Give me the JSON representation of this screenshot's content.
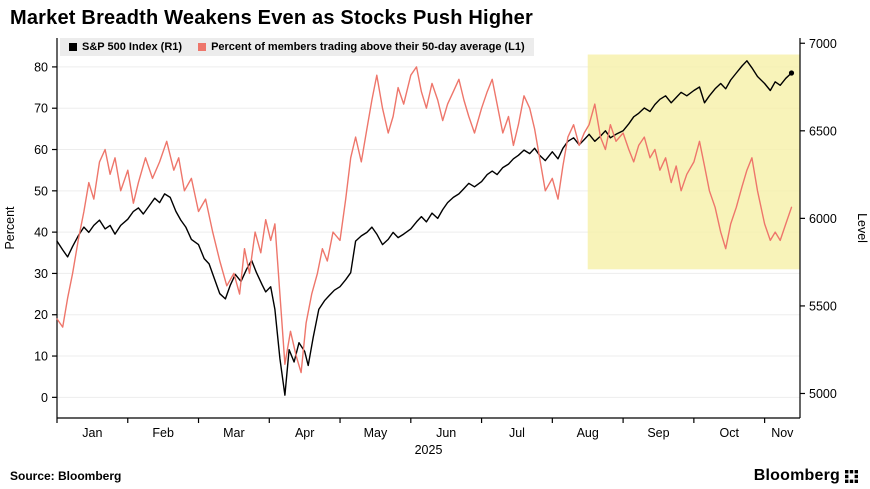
{
  "title": "Market Breadth Weakens Even as Stocks Push Higher",
  "source": "Source: Bloomberg",
  "brand": "Bloomberg",
  "legend": [
    {
      "label": "S&P 500 Index (R1)",
      "color": "#000000"
    },
    {
      "label": "Percent of members trading above their 50-day average (L1)",
      "color": "#ee766b"
    }
  ],
  "chart_data": {
    "type": "line",
    "title": "Market Breadth Weakens Even as Stocks Push Higher",
    "x_unit": "months, 0 = Jan 1 2025",
    "x_range": [
      0,
      10.5
    ],
    "x_month_labels": [
      "Jan",
      "Feb",
      "Mar",
      "Apr",
      "May",
      "Jun",
      "Jul",
      "Aug",
      "Sep",
      "Oct",
      "Nov"
    ],
    "year_label": "2025",
    "grid": "horizontal-light",
    "legend_position": "top-inside",
    "left_axis": {
      "title": "Percent",
      "min": -5,
      "max": 87,
      "ticks": [
        0,
        10,
        20,
        30,
        40,
        50,
        60,
        70,
        80
      ]
    },
    "right_axis": {
      "title": "Level",
      "min": 4860,
      "max": 7030,
      "ticks": [
        5000,
        5500,
        6000,
        6500,
        7000
      ]
    },
    "highlight": {
      "x0": 7.5,
      "x1": 10.5,
      "pct_y0": 31,
      "pct_y1": 83,
      "color": "#f6f0a8",
      "opacity": 0.8
    },
    "series": [
      {
        "name": "S&P 500 Index (R1)",
        "axis": "right",
        "color": "#000000",
        "end_marker": true,
        "points": [
          [
            0.0,
            5870
          ],
          [
            0.08,
            5820
          ],
          [
            0.15,
            5780
          ],
          [
            0.22,
            5840
          ],
          [
            0.3,
            5900
          ],
          [
            0.38,
            5950
          ],
          [
            0.45,
            5920
          ],
          [
            0.52,
            5960
          ],
          [
            0.6,
            5990
          ],
          [
            0.68,
            5940
          ],
          [
            0.75,
            5960
          ],
          [
            0.82,
            5910
          ],
          [
            0.9,
            5960
          ],
          [
            1.0,
            5995
          ],
          [
            1.08,
            6040
          ],
          [
            1.15,
            6060
          ],
          [
            1.22,
            6025
          ],
          [
            1.3,
            6070
          ],
          [
            1.38,
            6115
          ],
          [
            1.45,
            6090
          ],
          [
            1.52,
            6140
          ],
          [
            1.6,
            6120
          ],
          [
            1.68,
            6040
          ],
          [
            1.75,
            5990
          ],
          [
            1.82,
            5950
          ],
          [
            1.9,
            5880
          ],
          [
            2.0,
            5850
          ],
          [
            2.08,
            5770
          ],
          [
            2.15,
            5740
          ],
          [
            2.22,
            5660
          ],
          [
            2.3,
            5570
          ],
          [
            2.38,
            5540
          ],
          [
            2.45,
            5620
          ],
          [
            2.52,
            5680
          ],
          [
            2.6,
            5640
          ],
          [
            2.68,
            5710
          ],
          [
            2.75,
            5760
          ],
          [
            2.82,
            5690
          ],
          [
            2.9,
            5620
          ],
          [
            2.95,
            5580
          ],
          [
            3.02,
            5610
          ],
          [
            3.08,
            5480
          ],
          [
            3.15,
            5200
          ],
          [
            3.22,
            4990
          ],
          [
            3.28,
            5250
          ],
          [
            3.35,
            5180
          ],
          [
            3.42,
            5290
          ],
          [
            3.5,
            5240
          ],
          [
            3.55,
            5160
          ],
          [
            3.62,
            5320
          ],
          [
            3.7,
            5480
          ],
          [
            3.78,
            5530
          ],
          [
            3.85,
            5560
          ],
          [
            3.92,
            5590
          ],
          [
            4.0,
            5610
          ],
          [
            4.08,
            5650
          ],
          [
            4.15,
            5690
          ],
          [
            4.22,
            5870
          ],
          [
            4.3,
            5900
          ],
          [
            4.38,
            5920
          ],
          [
            4.45,
            5950
          ],
          [
            4.52,
            5910
          ],
          [
            4.6,
            5850
          ],
          [
            4.68,
            5880
          ],
          [
            4.75,
            5920
          ],
          [
            4.82,
            5890
          ],
          [
            4.9,
            5910
          ],
          [
            5.0,
            5940
          ],
          [
            5.08,
            5980
          ],
          [
            5.15,
            6010
          ],
          [
            5.22,
            5980
          ],
          [
            5.3,
            6030
          ],
          [
            5.38,
            6000
          ],
          [
            5.45,
            6050
          ],
          [
            5.52,
            6090
          ],
          [
            5.6,
            6120
          ],
          [
            5.68,
            6140
          ],
          [
            5.75,
            6170
          ],
          [
            5.82,
            6200
          ],
          [
            5.9,
            6180
          ],
          [
            6.0,
            6210
          ],
          [
            6.08,
            6250
          ],
          [
            6.15,
            6270
          ],
          [
            6.22,
            6250
          ],
          [
            6.3,
            6290
          ],
          [
            6.38,
            6310
          ],
          [
            6.45,
            6340
          ],
          [
            6.52,
            6360
          ],
          [
            6.6,
            6390
          ],
          [
            6.68,
            6370
          ],
          [
            6.75,
            6400
          ],
          [
            6.82,
            6360
          ],
          [
            6.9,
            6330
          ],
          [
            7.0,
            6380
          ],
          [
            7.08,
            6340
          ],
          [
            7.15,
            6400
          ],
          [
            7.22,
            6440
          ],
          [
            7.3,
            6460
          ],
          [
            7.38,
            6420
          ],
          [
            7.45,
            6450
          ],
          [
            7.52,
            6480
          ],
          [
            7.6,
            6440
          ],
          [
            7.68,
            6470
          ],
          [
            7.75,
            6500
          ],
          [
            7.82,
            6460
          ],
          [
            7.9,
            6480
          ],
          [
            8.0,
            6500
          ],
          [
            8.08,
            6540
          ],
          [
            8.15,
            6580
          ],
          [
            8.22,
            6600
          ],
          [
            8.3,
            6630
          ],
          [
            8.38,
            6610
          ],
          [
            8.45,
            6650
          ],
          [
            8.52,
            6680
          ],
          [
            8.6,
            6700
          ],
          [
            8.68,
            6660
          ],
          [
            8.75,
            6690
          ],
          [
            8.82,
            6720
          ],
          [
            8.9,
            6700
          ],
          [
            9.0,
            6730
          ],
          [
            9.08,
            6750
          ],
          [
            9.15,
            6660
          ],
          [
            9.22,
            6700
          ],
          [
            9.3,
            6740
          ],
          [
            9.38,
            6770
          ],
          [
            9.45,
            6740
          ],
          [
            9.52,
            6790
          ],
          [
            9.6,
            6830
          ],
          [
            9.68,
            6870
          ],
          [
            9.75,
            6900
          ],
          [
            9.82,
            6860
          ],
          [
            9.9,
            6810
          ],
          [
            10.0,
            6770
          ],
          [
            10.08,
            6730
          ],
          [
            10.15,
            6780
          ],
          [
            10.22,
            6760
          ],
          [
            10.3,
            6800
          ],
          [
            10.38,
            6830
          ]
        ]
      },
      {
        "name": "Percent of members trading above their 50-day average (L1)",
        "axis": "left",
        "color": "#ee766b",
        "end_marker": false,
        "points": [
          [
            0.0,
            19
          ],
          [
            0.08,
            17
          ],
          [
            0.15,
            24
          ],
          [
            0.22,
            30
          ],
          [
            0.3,
            38
          ],
          [
            0.38,
            45
          ],
          [
            0.45,
            52
          ],
          [
            0.52,
            48
          ],
          [
            0.6,
            57
          ],
          [
            0.68,
            60
          ],
          [
            0.75,
            54
          ],
          [
            0.82,
            58
          ],
          [
            0.9,
            50
          ],
          [
            1.0,
            55
          ],
          [
            1.08,
            47
          ],
          [
            1.15,
            52
          ],
          [
            1.25,
            58
          ],
          [
            1.35,
            53
          ],
          [
            1.45,
            57
          ],
          [
            1.55,
            62
          ],
          [
            1.65,
            55
          ],
          [
            1.72,
            58
          ],
          [
            1.8,
            50
          ],
          [
            1.9,
            53
          ],
          [
            2.0,
            45
          ],
          [
            2.1,
            48
          ],
          [
            2.2,
            40
          ],
          [
            2.3,
            33
          ],
          [
            2.4,
            27
          ],
          [
            2.5,
            30
          ],
          [
            2.58,
            25
          ],
          [
            2.65,
            36
          ],
          [
            2.72,
            30
          ],
          [
            2.8,
            40
          ],
          [
            2.88,
            35
          ],
          [
            2.95,
            43
          ],
          [
            3.02,
            38
          ],
          [
            3.08,
            42
          ],
          [
            3.15,
            25
          ],
          [
            3.22,
            8
          ],
          [
            3.3,
            16
          ],
          [
            3.38,
            10
          ],
          [
            3.45,
            6
          ],
          [
            3.52,
            18
          ],
          [
            3.6,
            25
          ],
          [
            3.68,
            30
          ],
          [
            3.75,
            36
          ],
          [
            3.82,
            33
          ],
          [
            3.9,
            40
          ],
          [
            4.0,
            38
          ],
          [
            4.08,
            48
          ],
          [
            4.15,
            58
          ],
          [
            4.22,
            63
          ],
          [
            4.3,
            57
          ],
          [
            4.38,
            65
          ],
          [
            4.45,
            72
          ],
          [
            4.52,
            78
          ],
          [
            4.6,
            70
          ],
          [
            4.68,
            64
          ],
          [
            4.75,
            68
          ],
          [
            4.82,
            75
          ],
          [
            4.9,
            71
          ],
          [
            5.0,
            78
          ],
          [
            5.08,
            80
          ],
          [
            5.15,
            74
          ],
          [
            5.22,
            70
          ],
          [
            5.3,
            76
          ],
          [
            5.38,
            72
          ],
          [
            5.45,
            67
          ],
          [
            5.52,
            71
          ],
          [
            5.6,
            74
          ],
          [
            5.68,
            77
          ],
          [
            5.75,
            72
          ],
          [
            5.82,
            68
          ],
          [
            5.9,
            64
          ],
          [
            6.0,
            70
          ],
          [
            6.08,
            74
          ],
          [
            6.15,
            77
          ],
          [
            6.22,
            71
          ],
          [
            6.3,
            64
          ],
          [
            6.38,
            68
          ],
          [
            6.45,
            61
          ],
          [
            6.52,
            66
          ],
          [
            6.6,
            73
          ],
          [
            6.68,
            70
          ],
          [
            6.75,
            65
          ],
          [
            6.82,
            58
          ],
          [
            6.9,
            50
          ],
          [
            7.0,
            53
          ],
          [
            7.08,
            48
          ],
          [
            7.15,
            56
          ],
          [
            7.22,
            63
          ],
          [
            7.3,
            66
          ],
          [
            7.38,
            61
          ],
          [
            7.45,
            64
          ],
          [
            7.52,
            66
          ],
          [
            7.6,
            71
          ],
          [
            7.68,
            63
          ],
          [
            7.75,
            60
          ],
          [
            7.82,
            66
          ],
          [
            7.9,
            62
          ],
          [
            8.0,
            64
          ],
          [
            8.08,
            60
          ],
          [
            8.15,
            57
          ],
          [
            8.22,
            61
          ],
          [
            8.3,
            63
          ],
          [
            8.38,
            58
          ],
          [
            8.45,
            60
          ],
          [
            8.52,
            55
          ],
          [
            8.6,
            58
          ],
          [
            8.68,
            52
          ],
          [
            8.75,
            56
          ],
          [
            8.82,
            50
          ],
          [
            8.9,
            54
          ],
          [
            9.0,
            57
          ],
          [
            9.08,
            62
          ],
          [
            9.15,
            56
          ],
          [
            9.22,
            50
          ],
          [
            9.3,
            46
          ],
          [
            9.38,
            40
          ],
          [
            9.45,
            36
          ],
          [
            9.52,
            42
          ],
          [
            9.6,
            46
          ],
          [
            9.68,
            51
          ],
          [
            9.75,
            55
          ],
          [
            9.82,
            58
          ],
          [
            9.9,
            50
          ],
          [
            10.0,
            42
          ],
          [
            10.08,
            38
          ],
          [
            10.15,
            40
          ],
          [
            10.22,
            38
          ],
          [
            10.3,
            42
          ],
          [
            10.38,
            46
          ]
        ]
      }
    ]
  }
}
